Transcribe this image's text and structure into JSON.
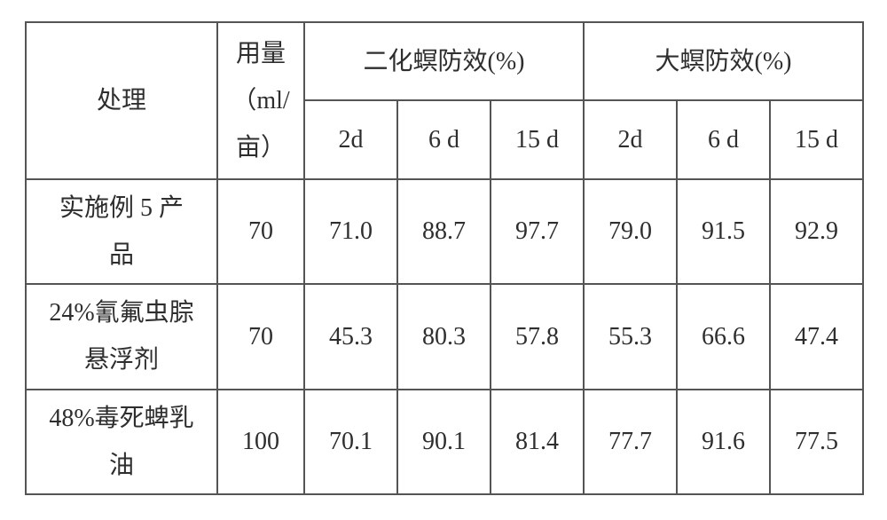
{
  "table": {
    "header": {
      "treatment": "处理",
      "dose": "用量\n（ml/\n亩）",
      "group1": "二化螟防效(%)",
      "group2": "大螟防效(%)",
      "sub": {
        "d2": "2d",
        "d6": "6 d",
        "d15": "15 d"
      }
    },
    "rows": [
      {
        "treatment": "实施例 5 产\n品",
        "dose": "70",
        "g1": {
          "d2": "71.0",
          "d6": "88.7",
          "d15": "97.7"
        },
        "g2": {
          "d2": "79.0",
          "d6": "91.5",
          "d15": "92.9"
        }
      },
      {
        "treatment": "24%氰氟虫腙\n悬浮剂",
        "dose": "70",
        "g1": {
          "d2": "45.3",
          "d6": "80.3",
          "d15": "57.8"
        },
        "g2": {
          "d2": "55.3",
          "d6": "66.6",
          "d15": "47.4"
        }
      },
      {
        "treatment": "48%毒死蜱乳\n油",
        "dose": "100",
        "g1": {
          "d2": "70.1",
          "d6": "90.1",
          "d15": "81.4"
        },
        "g2": {
          "d2": "77.7",
          "d6": "91.6",
          "d15": "77.5"
        }
      }
    ],
    "colors": {
      "border": "#545454",
      "text": "#2e2e2e",
      "background": "#ffffff"
    },
    "font": {
      "family": "SimSun",
      "size_pt": 21
    }
  }
}
